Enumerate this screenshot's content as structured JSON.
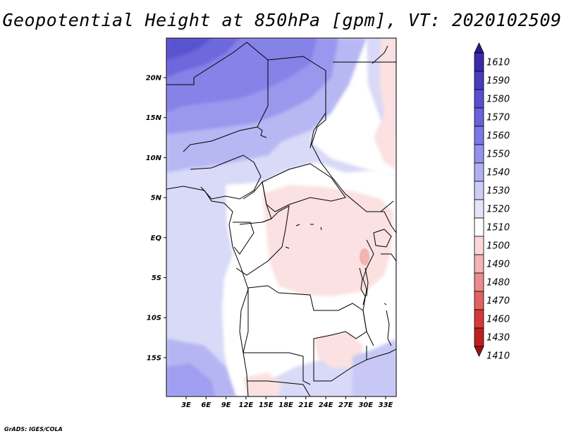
{
  "title": "Geopotential Height at 850hPa [gpm], VT: 2020102509",
  "credit": "GrADS: IGES/COLA",
  "map": {
    "lat_labels": [
      "20N",
      "15N",
      "10N",
      "5N",
      "EQ",
      "5S",
      "10S",
      "15S"
    ],
    "lon_labels": [
      "3E",
      "6E",
      "9E",
      "12E",
      "15E",
      "18E",
      "21E",
      "24E",
      "27E",
      "30E",
      "33E"
    ]
  },
  "colorbar": {
    "levels": [
      "1610",
      "1590",
      "1580",
      "1570",
      "1560",
      "1550",
      "1540",
      "1530",
      "1520",
      "1510",
      "1500",
      "1490",
      "1480",
      "1470",
      "1460",
      "1430",
      "1410"
    ],
    "colors": [
      "#2a1a8c",
      "#3a2ba8",
      "#4a3cc0",
      "#5a4fd0",
      "#6a62dc",
      "#7c78e6",
      "#9592ee",
      "#b0b0f2",
      "#cdcdf6",
      "#e4e4fa",
      "#ffffff",
      "#fbd9d9",
      "#f3b4b4",
      "#ea8c8c",
      "#e06262",
      "#d43a3a",
      "#c01e1e",
      "#a01010"
    ]
  }
}
